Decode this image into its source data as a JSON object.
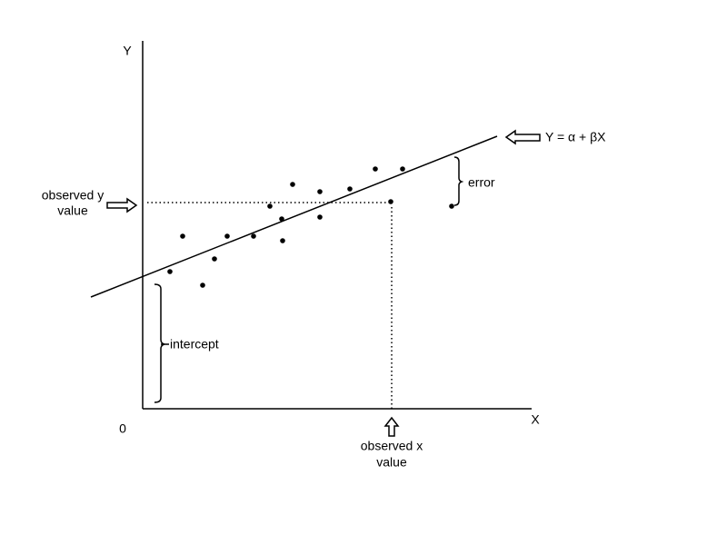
{
  "axes": {
    "y_label": "Y",
    "x_label": "X",
    "origin": "0"
  },
  "annotations": {
    "regression_line": "Y = α + βX",
    "error": "error",
    "observed_y": [
      "observed y",
      "value"
    ],
    "intercept": "intercept",
    "observed_x": [
      "observed x",
      "value"
    ]
  }
}
